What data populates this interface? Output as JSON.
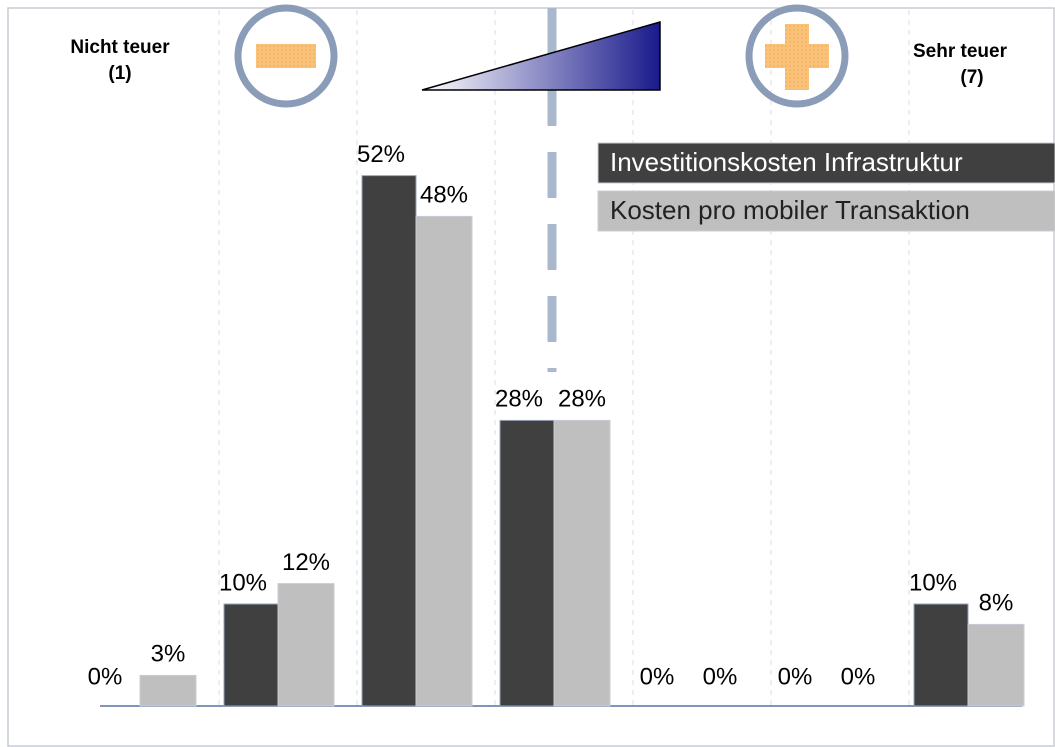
{
  "chart_data": {
    "type": "bar",
    "annotations": [
      [
        "Nicht teuer",
        "(1)"
      ],
      [
        "Sehr teuer",
        "(7)"
      ]
    ],
    "series": [
      {
        "name": "Investitionskosten Infrastruktur",
        "color": "#404040",
        "values": [
          0,
          10,
          52,
          28,
          0,
          0,
          10
        ],
        "value_labels": [
          "0%",
          "10%",
          "52%",
          "28%",
          "0%",
          "0%",
          "10%"
        ]
      },
      {
        "name": "Kosten pro mobiler Transaktion",
        "color": "#bfbfbf",
        "values": [
          3,
          12,
          48,
          28,
          0,
          0,
          8
        ],
        "value_labels": [
          "3%",
          "12%",
          "48%",
          "28%",
          "0%",
          "0%",
          "8%"
        ]
      }
    ]
  }
}
